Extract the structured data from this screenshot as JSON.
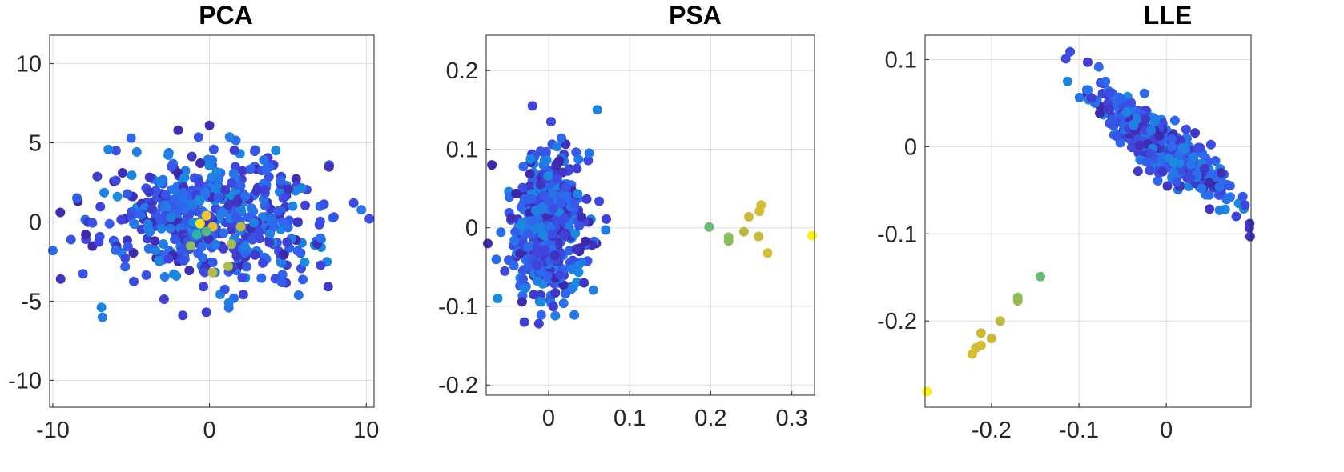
{
  "chart_data": [
    {
      "type": "scatter",
      "title": "PCA",
      "xlabel": "",
      "ylabel": "",
      "xlim": [
        -10.2,
        10.5
      ],
      "ylim": [
        -11.7,
        11.8
      ],
      "xticks": [
        -10,
        0,
        10
      ],
      "xtick_labels": [
        "-10",
        "0",
        "10"
      ],
      "yticks": [
        -10,
        -5,
        0,
        5,
        10
      ],
      "ytick_labels": [
        "-10",
        "-5",
        "0",
        "5",
        "10"
      ],
      "grid": true,
      "colormap": "parula",
      "outliers": [
        {
          "x": -0.6,
          "y": -0.1,
          "c": 0.96
        },
        {
          "x": -0.2,
          "y": 0.4,
          "c": 0.9
        },
        {
          "x": 0.2,
          "y": -0.3,
          "c": 0.85
        },
        {
          "x": 2.0,
          "y": -0.3,
          "c": 0.78
        },
        {
          "x": 1.4,
          "y": -1.4,
          "c": 0.75
        },
        {
          "x": -1.2,
          "y": -1.5,
          "c": 0.72
        },
        {
          "x": 1.2,
          "y": -2.8,
          "c": 0.76
        },
        {
          "x": 0.2,
          "y": -3.2,
          "c": 0.78
        },
        {
          "x": -0.8,
          "y": -0.8,
          "c": 0.6
        },
        {
          "x": -0.2,
          "y": -0.6,
          "c": 0.65
        }
      ],
      "cluster": {
        "n": 520,
        "x_center": 0,
        "y_center": 0,
        "x_sd": 3.5,
        "y_sd": 2.1,
        "rotation_deg": 0,
        "anchor_points": [
          {
            "x": -10.0,
            "y": -1.8,
            "c": 0.3
          },
          {
            "x": -9.5,
            "y": -3.6,
            "c": 0.15
          },
          {
            "x": 10.2,
            "y": 0.2,
            "c": 0.22
          },
          {
            "x": 9.2,
            "y": 1.2,
            "c": 0.22
          },
          {
            "x": -6.9,
            "y": -5.4,
            "c": 0.4
          },
          {
            "x": 0.0,
            "y": 6.1,
            "c": 0.12
          },
          {
            "x": -2.0,
            "y": 5.8,
            "c": 0.12
          },
          {
            "x": -5.0,
            "y": 5.3,
            "c": 0.3
          },
          {
            "x": -1.7,
            "y": -5.9,
            "c": 0.18
          },
          {
            "x": -0.2,
            "y": -5.7,
            "c": 0.18
          }
        ]
      }
    },
    {
      "type": "scatter",
      "title": "PSA",
      "xlabel": "",
      "ylabel": "",
      "xlim": [
        -0.077,
        0.328
      ],
      "ylim": [
        -0.213,
        0.245
      ],
      "xticks": [
        0,
        0.1,
        0.2,
        0.3
      ],
      "xtick_labels": [
        "0",
        "0.1",
        "0.2",
        "0.3"
      ],
      "yticks": [
        -0.2,
        -0.1,
        0,
        0.1,
        0.2
      ],
      "ytick_labels": [
        "-0.2",
        "-0.1",
        "0",
        "0.1",
        "0.2"
      ],
      "grid": true,
      "colormap": "parula",
      "outliers": [
        {
          "x": 0.198,
          "y": 0.001,
          "c": 0.68
        },
        {
          "x": 0.222,
          "y": -0.012,
          "c": 0.72
        },
        {
          "x": 0.222,
          "y": -0.017,
          "c": 0.72
        },
        {
          "x": 0.241,
          "y": -0.005,
          "c": 0.78
        },
        {
          "x": 0.247,
          "y": 0.014,
          "c": 0.8
        },
        {
          "x": 0.26,
          "y": 0.021,
          "c": 0.82
        },
        {
          "x": 0.262,
          "y": 0.029,
          "c": 0.82
        },
        {
          "x": 0.259,
          "y": -0.011,
          "c": 0.8
        },
        {
          "x": 0.27,
          "y": -0.032,
          "c": 0.82
        },
        {
          "x": 0.325,
          "y": -0.01,
          "c": 0.98
        }
      ],
      "cluster": {
        "n": 520,
        "x_center": 0.0,
        "y_center": 0.0,
        "x_sd": 0.022,
        "y_sd": 0.045,
        "rotation_deg": 0,
        "anchor_points": [
          {
            "x": 0.06,
            "y": 0.15,
            "c": 0.4
          },
          {
            "x": -0.02,
            "y": 0.155,
            "c": 0.2
          },
          {
            "x": -0.07,
            "y": 0.08,
            "c": 0.1
          },
          {
            "x": -0.075,
            "y": -0.02,
            "c": 0.12
          },
          {
            "x": -0.03,
            "y": -0.12,
            "c": 0.18
          },
          {
            "x": -0.012,
            "y": -0.122,
            "c": 0.18
          },
          {
            "x": 0.003,
            "y": 0.135,
            "c": 0.2
          },
          {
            "x": 0.05,
            "y": 0.095,
            "c": 0.35
          }
        ]
      }
    },
    {
      "type": "scatter",
      "title": "LLE",
      "xlabel": "",
      "ylabel": "",
      "xlim": [
        -0.276,
        0.097
      ],
      "ylim": [
        -0.299,
        0.128
      ],
      "xticks": [
        -0.2,
        -0.1,
        0
      ],
      "xtick_labels": [
        "-0.2",
        "-0.1",
        "0"
      ],
      "yticks": [
        -0.2,
        -0.1,
        0,
        0.1
      ],
      "ytick_labels": [
        "-0.2",
        "-0.1",
        "0",
        "0.1"
      ],
      "grid": true,
      "colormap": "parula",
      "outliers": [
        {
          "x": -0.144,
          "y": -0.149,
          "c": 0.68
        },
        {
          "x": -0.17,
          "y": -0.173,
          "c": 0.72
        },
        {
          "x": -0.17,
          "y": -0.177,
          "c": 0.74
        },
        {
          "x": -0.19,
          "y": -0.2,
          "c": 0.78
        },
        {
          "x": -0.2,
          "y": -0.22,
          "c": 0.8
        },
        {
          "x": -0.212,
          "y": -0.214,
          "c": 0.8
        },
        {
          "x": -0.212,
          "y": -0.228,
          "c": 0.82
        },
        {
          "x": -0.218,
          "y": -0.231,
          "c": 0.82
        },
        {
          "x": -0.222,
          "y": -0.238,
          "c": 0.83
        },
        {
          "x": -0.274,
          "y": -0.281,
          "c": 0.98
        }
      ],
      "cluster": {
        "n": 520,
        "x_center": -0.005,
        "y_center": 0.0,
        "x_sd": 0.045,
        "y_sd": 0.012,
        "rotation_deg": -37,
        "anchor_points": [
          {
            "x": -0.11,
            "y": 0.109,
            "c": 0.22
          },
          {
            "x": -0.115,
            "y": 0.101,
            "c": 0.22
          },
          {
            "x": -0.113,
            "y": 0.075,
            "c": 0.4
          },
          {
            "x": -0.09,
            "y": 0.097,
            "c": 0.18
          },
          {
            "x": 0.095,
            "y": -0.093,
            "c": 0.15
          },
          {
            "x": 0.096,
            "y": -0.103,
            "c": 0.15
          },
          {
            "x": 0.09,
            "y": -0.067,
            "c": 0.2
          },
          {
            "x": 0.08,
            "y": -0.08,
            "c": 0.2
          }
        ]
      }
    }
  ]
}
